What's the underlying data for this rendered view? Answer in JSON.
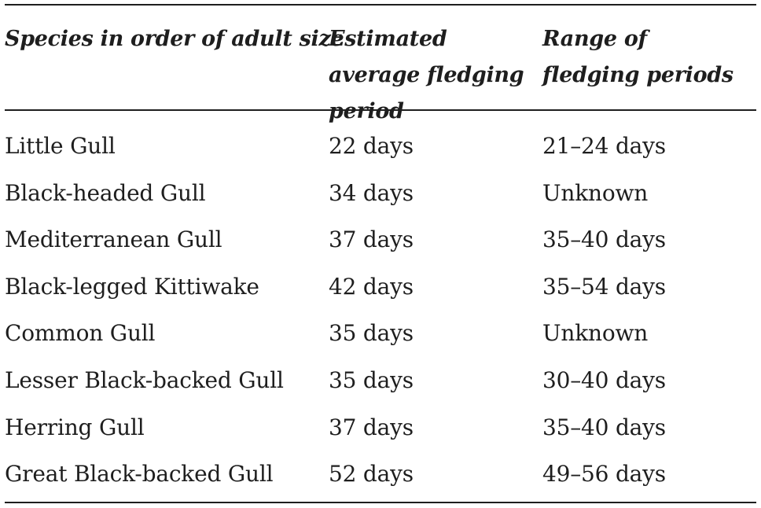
{
  "table": {
    "headers": {
      "species": "Species in order of adult size",
      "average": "Estimated average fledging period",
      "range": "Range of fledging periods"
    },
    "rows": [
      {
        "species": "Little Gull",
        "average": "22 days",
        "range": "21–24 days"
      },
      {
        "species": "Black-headed Gull",
        "average": "34 days",
        "range": "Unknown"
      },
      {
        "species": "Mediterranean Gull",
        "average": "37 days",
        "range": "35–40 days"
      },
      {
        "species": "Black-legged Kittiwake",
        "average": "42 days",
        "range": "35–54 days"
      },
      {
        "species": "Common Gull",
        "average": "35 days",
        "range": "Unknown"
      },
      {
        "species": "Lesser Black-backed Gull",
        "average": "35 days",
        "range": "30–40 days"
      },
      {
        "species": "Herring Gull",
        "average": "37 days",
        "range": "35–40 days"
      },
      {
        "species": "Great Black-backed Gull",
        "average": "52 days",
        "range": "49–56 days"
      }
    ]
  }
}
